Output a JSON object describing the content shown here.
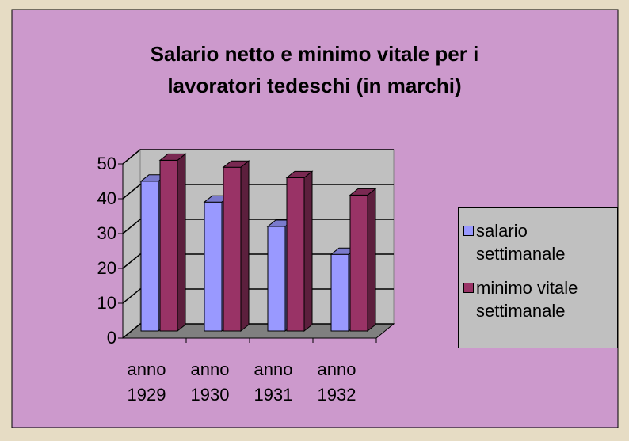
{
  "chart_data": {
    "type": "bar3d",
    "title": "Salario netto e minimo vitale per i lavoratori tedeschi (in marchi)",
    "categories": [
      "anno 1929",
      "anno 1930",
      "anno 1931",
      "anno 1932"
    ],
    "series": [
      {
        "name": "salario settimanale",
        "color": "#9999ff",
        "values": [
          43,
          37,
          30,
          22
        ]
      },
      {
        "name": "minimo vitale settimanale",
        "color": "#993366",
        "values": [
          49,
          47,
          44,
          39
        ]
      }
    ],
    "ylim": [
      0,
      50
    ],
    "yticks": [
      0,
      10,
      20,
      30,
      40,
      50
    ],
    "grid": true,
    "legend": "right"
  }
}
